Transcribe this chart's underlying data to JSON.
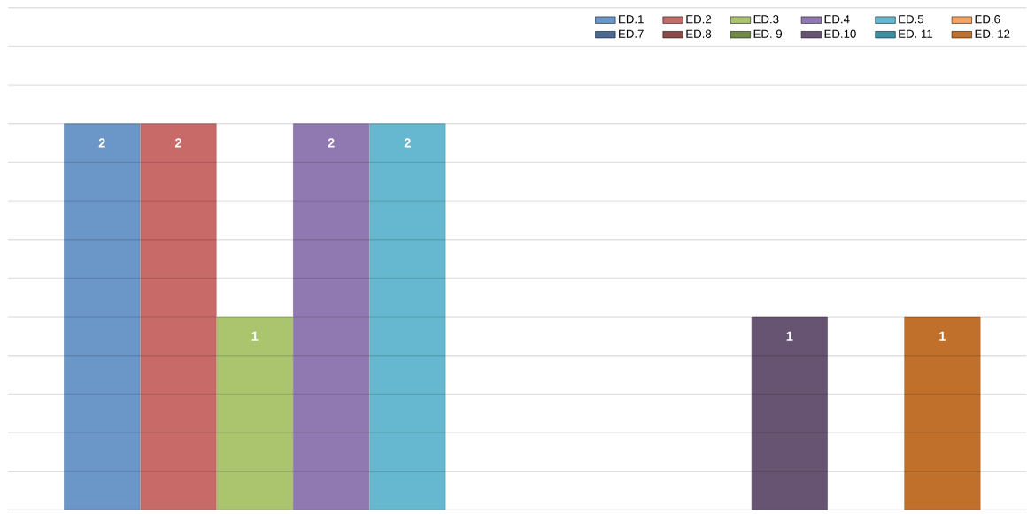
{
  "chart_data": {
    "type": "bar",
    "categories": [
      null
    ],
    "series": [
      {
        "name": "ED.1",
        "color": "#6a96c8",
        "values": [
          2
        ]
      },
      {
        "name": "ED.2",
        "color": "#c86a68",
        "values": [
          2
        ]
      },
      {
        "name": "ED.3",
        "color": "#abc46e",
        "values": [
          1
        ]
      },
      {
        "name": "ED.4",
        "color": "#9079b0",
        "values": [
          2
        ]
      },
      {
        "name": "ED.5",
        "color": "#65b8cf",
        "values": [
          2
        ]
      },
      {
        "name": "ED.6",
        "color": "#f8a35f",
        "values": [
          null
        ]
      },
      {
        "name": "ED.7",
        "color": "#4a6a92",
        "values": [
          null
        ]
      },
      {
        "name": "ED.8",
        "color": "#8e4a48",
        "values": [
          null
        ]
      },
      {
        "name": "ED. 9",
        "color": "#708a45",
        "values": [
          null
        ]
      },
      {
        "name": "ED.10",
        "color": "#675472",
        "values": [
          1
        ]
      },
      {
        "name": "ED. 11",
        "color": "#3d8ea1",
        "values": [
          null
        ]
      },
      {
        "name": "ED. 12",
        "color": "#c1702b",
        "values": [
          1
        ]
      }
    ],
    "tick_labels": false,
    "grid": "y",
    "legend": "top right",
    "data_labels": true
  }
}
